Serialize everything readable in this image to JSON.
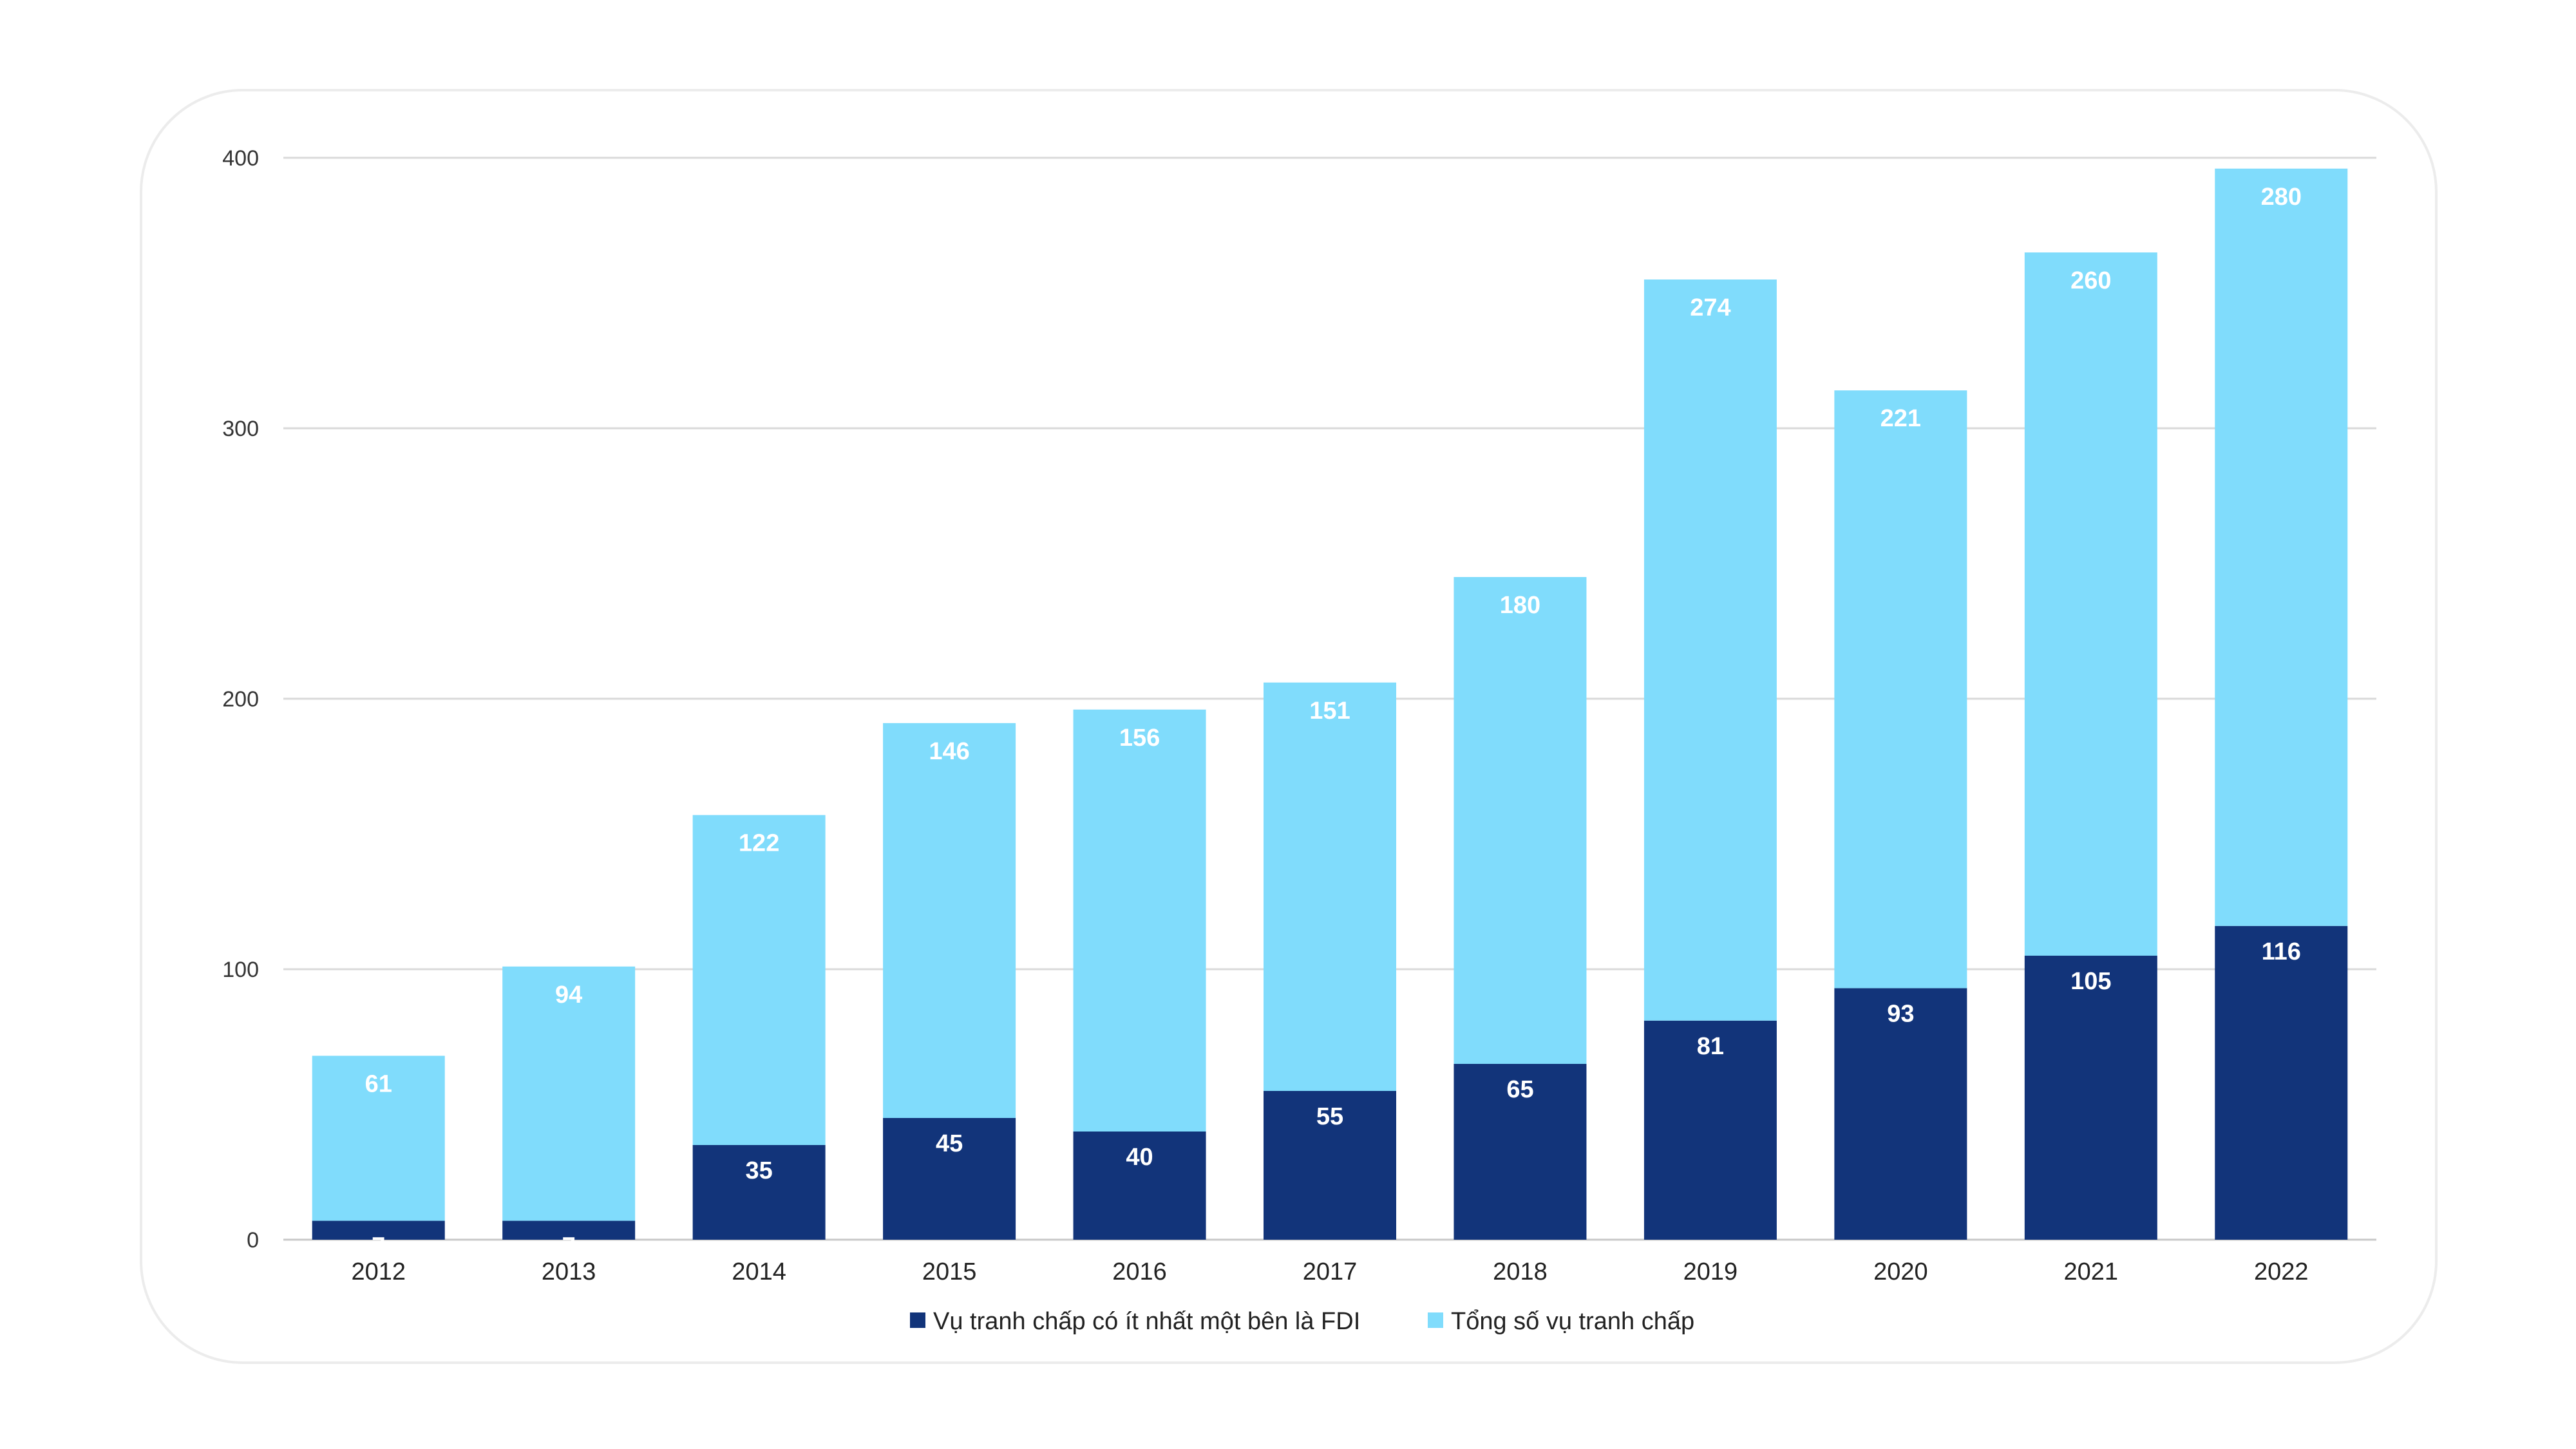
{
  "chart_data": {
    "type": "bar",
    "stacked": true,
    "categories": [
      "2012",
      "2013",
      "2014",
      "2015",
      "2016",
      "2017",
      "2018",
      "2019",
      "2020",
      "2021",
      "2022"
    ],
    "series": [
      {
        "name": "Vụ tranh chấp có ít nhất một bên là FDI",
        "color": "#12347a",
        "values": [
          7,
          7,
          35,
          45,
          40,
          55,
          65,
          81,
          93,
          105,
          116
        ]
      },
      {
        "name": "Tổng số vụ tranh chấp",
        "color": "#80dcfc",
        "values": [
          61,
          94,
          122,
          146,
          156,
          151,
          180,
          274,
          221,
          260,
          280
        ]
      }
    ],
    "ylim": [
      0,
      400
    ],
    "yticks": [
      0,
      100,
      200,
      300,
      400
    ],
    "grid": true,
    "legend": "bottom-center",
    "title": "",
    "xlabel": "",
    "ylabel": ""
  }
}
